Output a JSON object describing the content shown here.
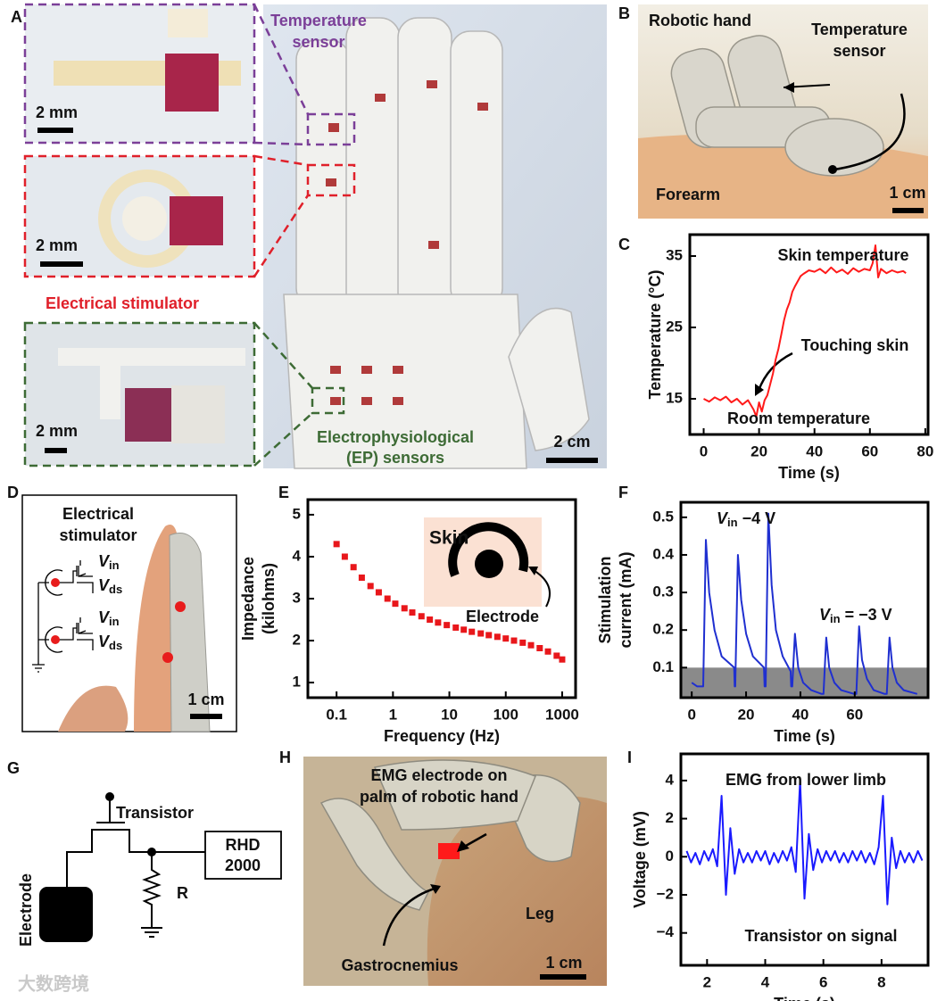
{
  "panels": {
    "labels": [
      "A",
      "B",
      "C",
      "D",
      "E",
      "F",
      "G",
      "H",
      "I"
    ]
  },
  "panel_a": {
    "temperature_sensor": [
      "Temperature",
      "sensor"
    ],
    "electrical_stimulator": "Electrical stimulator",
    "ep_sensors": [
      "Electrophysiological",
      "(EP) sensors"
    ],
    "scale_bars": [
      "2 mm",
      "2 mm",
      "2 mm",
      "2 cm"
    ]
  },
  "panel_b": {
    "robotic_hand": "Robotic hand",
    "temperature_sensor": [
      "Temperature",
      "sensor"
    ],
    "forearm": "Forearm",
    "scale_bar": "1 cm"
  },
  "panel_d": {
    "title": [
      "Electrical",
      "stimulator"
    ],
    "circuit_labels": [
      [
        "V",
        "in"
      ],
      [
        "V",
        "ds"
      ],
      [
        "V",
        "in"
      ],
      [
        "V",
        "ds"
      ]
    ],
    "scale_bar": "1 cm"
  },
  "panel_g": {
    "transistor": "Transistor",
    "rhd": [
      "RHD",
      "2000"
    ],
    "resistor": "R",
    "electrode": "Electrode"
  },
  "panel_h": {
    "emg_electrode": [
      "EMG electrode on",
      "palm of robotic hand"
    ],
    "gastrocnemius": "Gastrocnemius",
    "leg": "Leg",
    "scale_bar": "1 cm"
  },
  "watermark": "大数跨境",
  "chart_data": [
    {
      "type": "line",
      "x_label": "Time (s)",
      "y_label": "Temperature (°C)",
      "color": "#ff1a1a",
      "x": [
        0,
        2,
        4,
        6,
        8,
        10,
        12,
        14,
        16,
        18,
        19,
        20,
        21,
        22,
        23,
        24,
        25,
        26,
        27,
        28,
        29,
        30,
        31,
        32,
        33,
        34,
        35,
        36,
        38,
        40,
        42,
        44,
        46,
        48,
        50,
        52,
        54,
        56,
        58,
        60,
        61,
        62,
        63,
        64,
        66,
        68,
        70,
        72,
        73
      ],
      "values": [
        15,
        14.6,
        15.2,
        14.8,
        15.3,
        14.5,
        15,
        14.2,
        14.8,
        13.5,
        12.5,
        14.5,
        13.2,
        14.8,
        15.5,
        17,
        18.5,
        20.5,
        22,
        24,
        26,
        27.5,
        28.5,
        30,
        30.8,
        31.5,
        32.2,
        32.5,
        33,
        32.8,
        33.2,
        32.6,
        33.4,
        32.7,
        33.1,
        32.5,
        33.3,
        32.8,
        33.2,
        33,
        34,
        36.5,
        32,
        33.2,
        32.6,
        33,
        32.7,
        32.9,
        32.6
      ],
      "xlim": [
        -5,
        81
      ],
      "ylim": [
        10,
        38
      ],
      "xticks": [
        0,
        20,
        40,
        60,
        80
      ],
      "yticks": [
        15,
        25,
        35
      ],
      "annotations": [
        "Skin temperature",
        "Touching skin",
        "Room temperature"
      ]
    },
    {
      "type": "scatter",
      "x_label": "Frequency (Hz)",
      "y_label": [
        "Impedance",
        "(kilohms)"
      ],
      "color": "#e8171b",
      "log_x": true,
      "x": [
        0.1,
        0.14,
        0.2,
        0.28,
        0.4,
        0.56,
        0.8,
        1.1,
        1.6,
        2.2,
        3.2,
        4.5,
        6.3,
        9,
        13,
        18,
        25,
        36,
        50,
        71,
        100,
        140,
        200,
        280,
        400,
        560,
        800,
        1000
      ],
      "values": [
        4.3,
        4.0,
        3.75,
        3.5,
        3.3,
        3.15,
        3.0,
        2.88,
        2.77,
        2.67,
        2.58,
        2.5,
        2.43,
        2.37,
        2.31,
        2.26,
        2.21,
        2.17,
        2.13,
        2.09,
        2.05,
        2.0,
        1.95,
        1.89,
        1.82,
        1.74,
        1.64,
        1.55
      ],
      "xlim": [
        0.031,
        1730
      ],
      "ylim": [
        0.64,
        5.36
      ],
      "xticks": [
        0.1,
        1,
        10,
        100,
        1000
      ],
      "yticks": [
        1,
        2,
        3,
        4,
        5
      ],
      "inset": {
        "skin": "Skin",
        "electrode": "Electrode"
      }
    },
    {
      "type": "line",
      "x_label": "Time (s)",
      "y_label": [
        "Stimulation",
        "current (mA)"
      ],
      "color": "#1f2fd0",
      "x": [
        0,
        2,
        4.2,
        5.2,
        6.4,
        8.4,
        11,
        15.6,
        15.8,
        16,
        17,
        18.2,
        20,
        22.5,
        26.6,
        26.8,
        27.2,
        28.2,
        29.4,
        31,
        33.5,
        36.4,
        36.6,
        37,
        38,
        39.2,
        41,
        44,
        47.8,
        48.5,
        49.5,
        50.6,
        52.5,
        55,
        59.8,
        60.6,
        61.6,
        62.7,
        64.5,
        67,
        71,
        71.8,
        72.8,
        73.9,
        75.5,
        78,
        83
      ],
      "values": [
        0.06,
        0.05,
        0.05,
        0.44,
        0.3,
        0.2,
        0.13,
        0.1,
        0.05,
        0.05,
        0.4,
        0.28,
        0.19,
        0.13,
        0.1,
        0.05,
        0.05,
        0.51,
        0.32,
        0.2,
        0.13,
        0.09,
        0.05,
        0.05,
        0.19,
        0.1,
        0.06,
        0.04,
        0.03,
        0.03,
        0.18,
        0.1,
        0.06,
        0.04,
        0.03,
        0.03,
        0.21,
        0.12,
        0.07,
        0.04,
        0.03,
        0.03,
        0.18,
        0.1,
        0.06,
        0.04,
        0.03
      ],
      "xlim": [
        -4,
        87
      ],
      "ylim": [
        0.02,
        0.54
      ],
      "xticks": [
        0,
        20,
        40,
        60
      ],
      "yticks": [
        0.1,
        0.2,
        0.3,
        0.4,
        0.5
      ],
      "band_upper": 0.1,
      "band_color": "#8a8a8a",
      "annotations": [
        {
          "main": "V",
          "sub": "in",
          "rest": " −4 V"
        },
        {
          "main": "V",
          "sub": "in",
          "rest": " = −3 V"
        }
      ]
    },
    {
      "type": "line",
      "x_label": "Time (s)",
      "y_label": "Voltage (mV)",
      "color": "#1a1aff",
      "x": [
        1.3,
        1.45,
        1.6,
        1.75,
        1.9,
        2.05,
        2.2,
        2.35,
        2.5,
        2.65,
        2.8,
        2.95,
        3.1,
        3.25,
        3.4,
        3.55,
        3.7,
        3.85,
        4.0,
        4.15,
        4.3,
        4.45,
        4.6,
        4.75,
        4.9,
        5.05,
        5.2,
        5.35,
        5.5,
        5.65,
        5.8,
        5.95,
        6.1,
        6.25,
        6.4,
        6.55,
        6.7,
        6.85,
        7.0,
        7.15,
        7.3,
        7.45,
        7.6,
        7.75,
        7.9,
        8.05,
        8.2,
        8.35,
        8.5,
        8.65,
        8.8,
        8.95,
        9.1,
        9.25,
        9.4
      ],
      "values": [
        0.3,
        -0.3,
        0.2,
        -0.4,
        0.3,
        -0.2,
        0.4,
        -0.5,
        3.2,
        -2.0,
        1.5,
        -0.9,
        0.4,
        -0.3,
        0.2,
        -0.3,
        0.3,
        -0.2,
        0.3,
        -0.4,
        0.2,
        -0.3,
        0.3,
        -0.2,
        0.5,
        -0.8,
        4.0,
        -2.2,
        1.2,
        -0.7,
        0.4,
        -0.3,
        0.3,
        -0.2,
        0.3,
        -0.3,
        0.2,
        -0.3,
        0.3,
        -0.2,
        0.3,
        -0.3,
        0.2,
        -0.4,
        0.5,
        3.2,
        -2.5,
        1.0,
        -0.6,
        0.3,
        -0.3,
        0.2,
        -0.3,
        0.3,
        -0.2
      ],
      "xlim": [
        1.1,
        9.6
      ],
      "ylim": [
        -5.7,
        5.4
      ],
      "xticks": [
        2,
        4,
        6,
        8
      ],
      "yticks": [
        {
          "value": -4,
          "label": "−4"
        },
        {
          "value": -2,
          "label": "−2"
        },
        0,
        2,
        4
      ],
      "annotations": [
        "EMG from lower limb",
        "Transistor on signal"
      ]
    }
  ]
}
